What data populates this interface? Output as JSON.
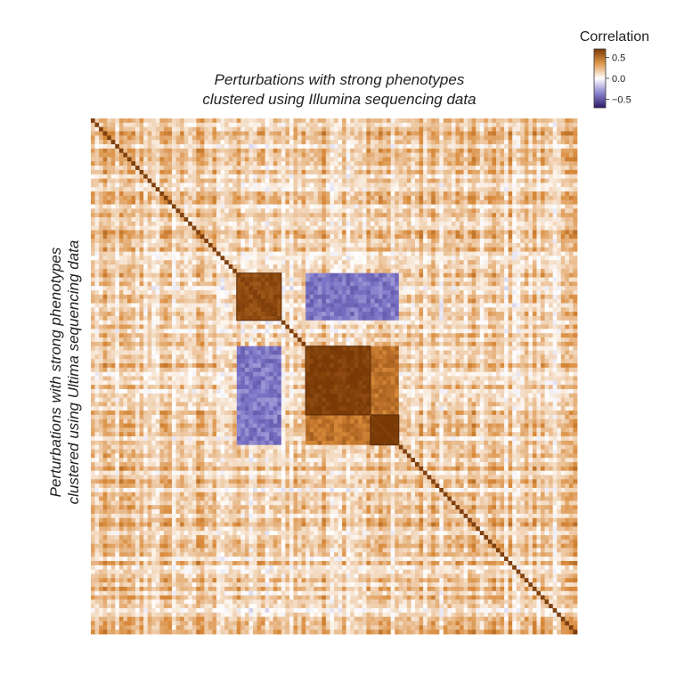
{
  "chart_data": {
    "type": "heatmap",
    "title": [
      "Perturbations with strong phenotypes",
      "clustered using Illumina sequencing data"
    ],
    "ylabel": [
      "Perturbations with strong phenotypes",
      "clustered using Ultima sequencing data"
    ],
    "legend": {
      "title": "Correlation",
      "ticks": [
        0.5,
        0.0,
        -0.5
      ],
      "tick_labels": [
        "0.5",
        "0.0",
        "−0.5"
      ],
      "range": [
        -0.7,
        0.7
      ],
      "placement": "top-right"
    },
    "colors": {
      "positive": "#7a3a06",
      "mid_positive": "#d98a3a",
      "zero": "#ffffff",
      "negative": "#2f1a68",
      "mid_negative": "#7b74c6"
    },
    "matrix_size": 120,
    "diagonal": 1.0,
    "clusters": [
      {
        "start": 36,
        "end": 47,
        "mean_correlation": 0.62
      },
      {
        "start": 53,
        "end": 69,
        "mean_correlation": 0.68
      },
      {
        "start": 69,
        "end": 76,
        "mean_correlation": 0.72
      }
    ],
    "cross_block_correlation": -0.35
  }
}
